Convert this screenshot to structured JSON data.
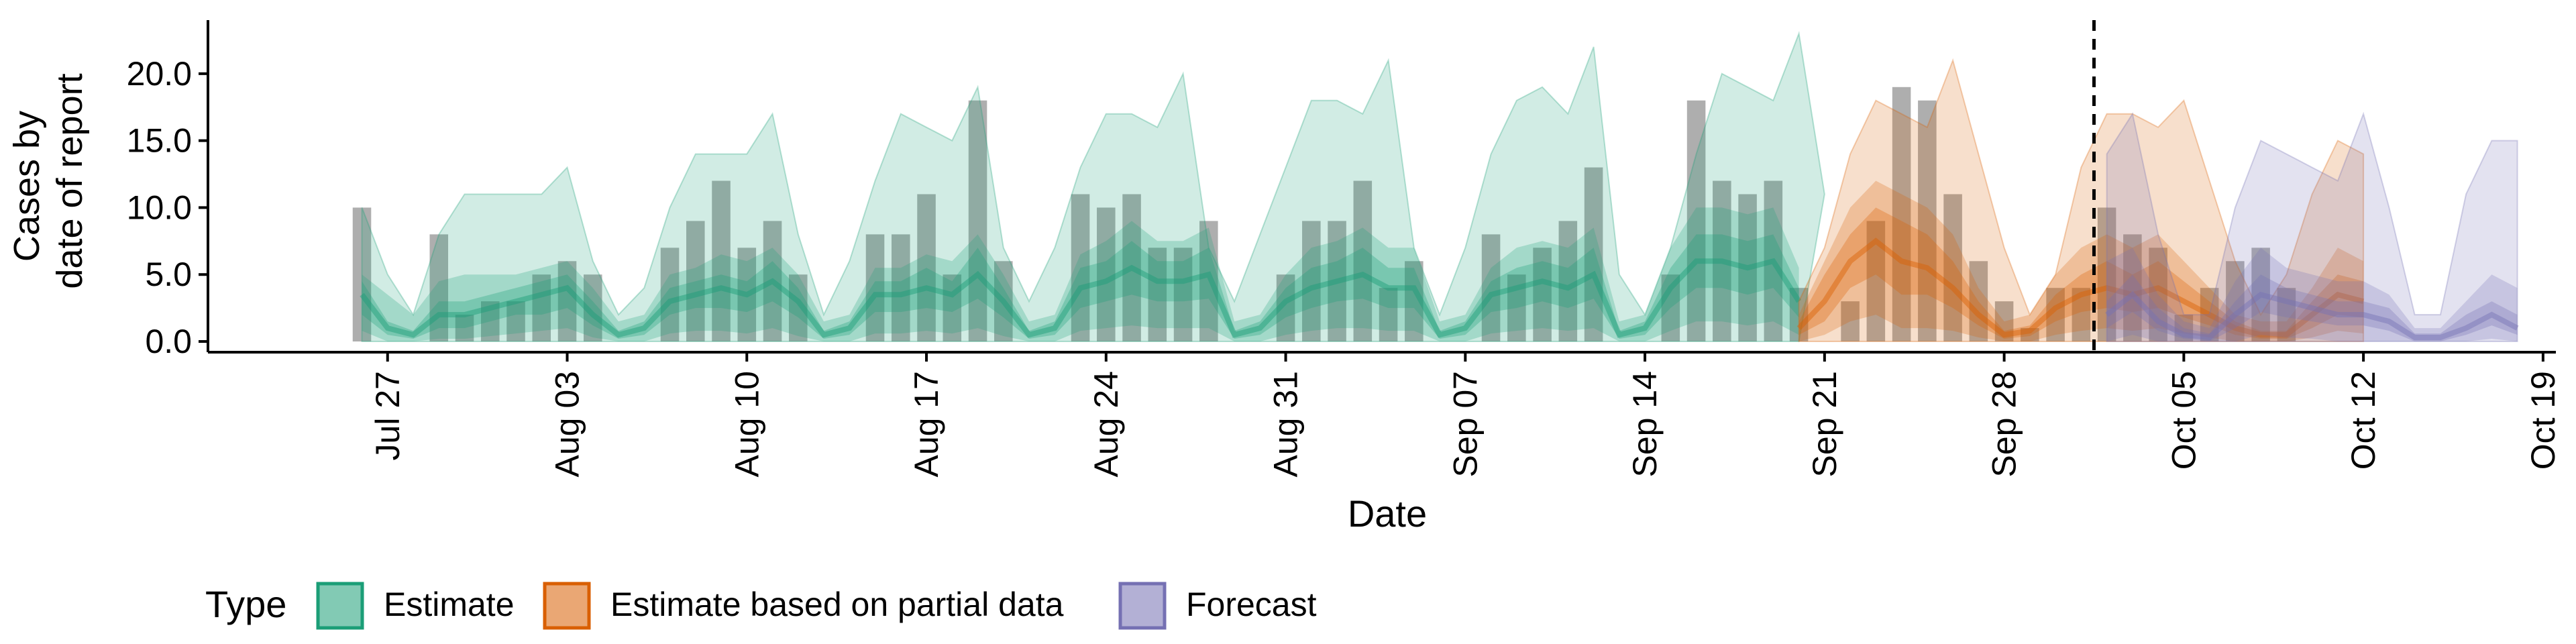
{
  "chart_data": {
    "type": "area",
    "title": "",
    "xlabel": "Date",
    "ylabel_lines": [
      "Cases by",
      "date of report"
    ],
    "x_start": "2021-07-20",
    "xlim_days": [
      0,
      91.5
    ],
    "ylim": [
      -0.8,
      24
    ],
    "y_ticks": [
      0,
      5,
      10,
      15,
      20
    ],
    "y_tick_labels": [
      "0.0",
      "5.0",
      "10.0",
      "15.0",
      "20.0"
    ],
    "x_tick_days": [
      7,
      14,
      21,
      28,
      35,
      42,
      49,
      56,
      63,
      70,
      77,
      84,
      91
    ],
    "x_tick_labels": [
      "Jul 27",
      "Aug 03",
      "Aug 10",
      "Aug 17",
      "Aug 24",
      "Aug 31",
      "Sep 07",
      "Sep 14",
      "Sep 21",
      "Sep 28",
      "Oct 05",
      "Oct 12",
      "Oct 19"
    ],
    "vline_day": 73.5,
    "legend": {
      "title": "Type",
      "position": "bottom",
      "entries": [
        {
          "label": "Estimate",
          "color": "#1B9E77"
        },
        {
          "label": "Estimate based on partial data",
          "color": "#D95F02"
        },
        {
          "label": "Forecast",
          "color": "#7570B3"
        }
      ]
    },
    "reported_cases": {
      "start_day": 6,
      "color": "#8c8c8c",
      "values": [
        10,
        0,
        0,
        8,
        2,
        3,
        3,
        5,
        6,
        5,
        0,
        0,
        7,
        9,
        12,
        7,
        9,
        5,
        0,
        0,
        8,
        8,
        11,
        5,
        18,
        6,
        0,
        0,
        11,
        10,
        11,
        7,
        7,
        9,
        0,
        0,
        5,
        9,
        9,
        12,
        4,
        6,
        0,
        0,
        8,
        5,
        7,
        9,
        13,
        0,
        0,
        5,
        18,
        12,
        11,
        12,
        4,
        0,
        3,
        9,
        19,
        18,
        11,
        6,
        3,
        1,
        4,
        4,
        10,
        8,
        7,
        2,
        4,
        6,
        7,
        4
      ]
    },
    "series": [
      {
        "name": "Estimate",
        "color": "#1B9E77",
        "start_day": 6,
        "median": [
          3.5,
          1,
          0.5,
          2,
          2,
          2.5,
          3,
          3.5,
          4,
          2,
          0.5,
          1,
          3,
          3.5,
          4,
          3.5,
          4.5,
          3,
          0.5,
          1,
          3.5,
          3.5,
          4,
          3.5,
          5,
          3,
          0.5,
          1,
          4,
          4.5,
          5.5,
          4.5,
          4.5,
          5,
          0.5,
          1,
          3,
          4,
          4.5,
          5,
          4,
          4,
          0.5,
          1,
          3.5,
          4,
          4.5,
          4,
          5,
          0.5,
          1,
          4,
          6,
          6,
          5.5,
          6,
          3
        ],
        "inner_lo": [
          2,
          0.5,
          0.2,
          1,
          1,
          1.5,
          2,
          2,
          2.5,
          1.2,
          0.2,
          0.5,
          2,
          2.5,
          2.5,
          2.2,
          3,
          1.8,
          0.2,
          0.5,
          2.2,
          2.2,
          2.5,
          2.2,
          3.2,
          1.8,
          0.2,
          0.5,
          2.5,
          3,
          3.5,
          3,
          3,
          3.2,
          0.2,
          0.5,
          1.8,
          2.5,
          3,
          3.2,
          2.5,
          2.5,
          0.2,
          0.5,
          2.2,
          2.5,
          3,
          2.5,
          3.2,
          0.2,
          0.5,
          2.5,
          4,
          4,
          3.5,
          4,
          1.8
        ],
        "inner_hi": [
          4.5,
          1.5,
          0.8,
          3,
          3,
          3.5,
          4,
          4.5,
          5,
          3,
          0.8,
          1.5,
          4,
          4.5,
          5,
          4.5,
          6,
          4,
          0.8,
          1.5,
          4.5,
          4.5,
          5.5,
          4.5,
          7,
          4,
          0.8,
          1.5,
          5.5,
          6,
          7.5,
          6,
          6,
          7,
          0.8,
          1.5,
          4,
          5.5,
          6,
          7,
          5.5,
          5.5,
          0.8,
          1.5,
          4.5,
          5.5,
          6,
          5.5,
          7,
          0.8,
          1.5,
          5.5,
          8,
          8,
          7.5,
          8,
          4
        ],
        "outer_lo": [
          0.8,
          0,
          0,
          0.2,
          0.2,
          0.4,
          0.6,
          0.8,
          1,
          0.3,
          0,
          0,
          0.6,
          0.8,
          0.8,
          0.6,
          1,
          0.4,
          0,
          0,
          0.6,
          0.6,
          0.8,
          0.6,
          1,
          0.4,
          0,
          0,
          0.8,
          1,
          1.2,
          1,
          1,
          1,
          0,
          0,
          0.5,
          0.8,
          1,
          1,
          0.8,
          0.8,
          0,
          0,
          0.6,
          0.8,
          1,
          0.8,
          1,
          0,
          0,
          0.8,
          1.5,
          1.5,
          1.2,
          1.5,
          0.5
        ],
        "outer_hi": [
          5,
          3.5,
          2,
          4.5,
          5,
          5,
          5,
          5.5,
          6,
          4,
          1.5,
          2,
          5,
          5.5,
          6.5,
          6,
          7,
          5,
          1.5,
          2,
          5.5,
          5.5,
          6.5,
          6,
          8,
          5,
          1.5,
          2,
          6.5,
          7.5,
          9,
          7.5,
          7.5,
          8.5,
          1.5,
          2,
          5,
          7,
          7.5,
          8.5,
          7,
          7,
          1.5,
          2,
          5.5,
          7,
          7.5,
          7,
          8.5,
          1.5,
          2,
          7,
          10,
          10,
          9.5,
          10,
          5.5
        ],
        "band90_hi": [
          10,
          5,
          2,
          8,
          11,
          11,
          11,
          11,
          13,
          6,
          2,
          4,
          10,
          14,
          14,
          14,
          17,
          8,
          2,
          6,
          12,
          17,
          16,
          15,
          19,
          7,
          3,
          7,
          13,
          17,
          17,
          16,
          20,
          7,
          3,
          8,
          13,
          18,
          18,
          17,
          21,
          7,
          2,
          7,
          14,
          18,
          19,
          17,
          22,
          5,
          2,
          7,
          14,
          20,
          19,
          18,
          23,
          11
        ]
      },
      {
        "name": "Estimate based on partial data",
        "color": "#D95F02",
        "start_day": 62,
        "median": [
          1,
          3,
          6,
          7.5,
          6,
          5.5,
          4,
          2,
          0.5,
          0.8,
          2.5,
          3.5,
          4,
          3.5,
          4,
          3,
          2,
          1,
          0.5,
          0.5,
          2,
          3.5,
          3
        ],
        "inner_lo": [
          0.5,
          1.5,
          4,
          5,
          3.5,
          3.5,
          2.5,
          1.2,
          0.2,
          0.4,
          1.5,
          2.2,
          2.5,
          2.2,
          2.5,
          1.8,
          1.2,
          0.5,
          0.2,
          0.2,
          1,
          2,
          1.8
        ],
        "inner_hi": [
          1.5,
          5,
          8,
          10,
          9,
          8,
          6,
          3,
          0.8,
          1.2,
          3.5,
          5,
          6,
          5,
          6,
          4.5,
          3,
          1.5,
          0.8,
          0.8,
          3,
          5,
          4.5
        ],
        "outer_lo": [
          0,
          0.5,
          1.5,
          2,
          1,
          1,
          0.8,
          0.3,
          0,
          0,
          0.5,
          0.8,
          1,
          0.8,
          1,
          0.6,
          0.3,
          0,
          0,
          0,
          0.3,
          0.8,
          0.6
        ],
        "outer_hi": [
          2,
          6,
          10,
          12,
          11,
          10,
          8,
          4,
          1.5,
          2,
          5,
          7,
          8,
          7,
          8,
          6,
          4,
          2,
          1.5,
          1.5,
          4,
          7,
          6
        ],
        "band90_hi": [
          3,
          7,
          14,
          18,
          17,
          16,
          21,
          14,
          7,
          2,
          5,
          13,
          17,
          17,
          16,
          18,
          12,
          6,
          2,
          5,
          11,
          15,
          14
        ]
      },
      {
        "name": "Forecast",
        "color": "#7570B3",
        "start_day": 74,
        "median": [
          2,
          3.5,
          1.5,
          0.5,
          0.3,
          2,
          3.5,
          3,
          2.5,
          2,
          2,
          1.5,
          0.3,
          0.3,
          1,
          2,
          1
        ],
        "inner_lo": [
          1,
          2.2,
          0.8,
          0.2,
          0,
          1,
          2.2,
          1.8,
          1.5,
          1.2,
          1.2,
          0.8,
          0,
          0,
          0.5,
          1.2,
          0.5
        ],
        "inner_hi": [
          3,
          5,
          2.5,
          1,
          0.6,
          3,
          5,
          4,
          3.5,
          3,
          3,
          2.5,
          0.6,
          0.6,
          2,
          3,
          2
        ],
        "outer_lo": [
          0,
          0.5,
          0,
          0,
          0,
          0,
          0.5,
          0.3,
          0.2,
          0,
          0,
          0,
          0,
          0,
          0,
          0.2,
          0
        ],
        "outer_hi": [
          6,
          7,
          3.5,
          1.5,
          1,
          4.5,
          7,
          5.5,
          5,
          4.5,
          4.5,
          3.5,
          1,
          1,
          3,
          5,
          4
        ],
        "band90_hi": [
          14,
          17,
          8,
          2,
          2,
          10,
          15,
          14,
          13,
          12,
          17,
          10,
          2,
          2,
          11,
          15,
          15
        ]
      }
    ]
  }
}
